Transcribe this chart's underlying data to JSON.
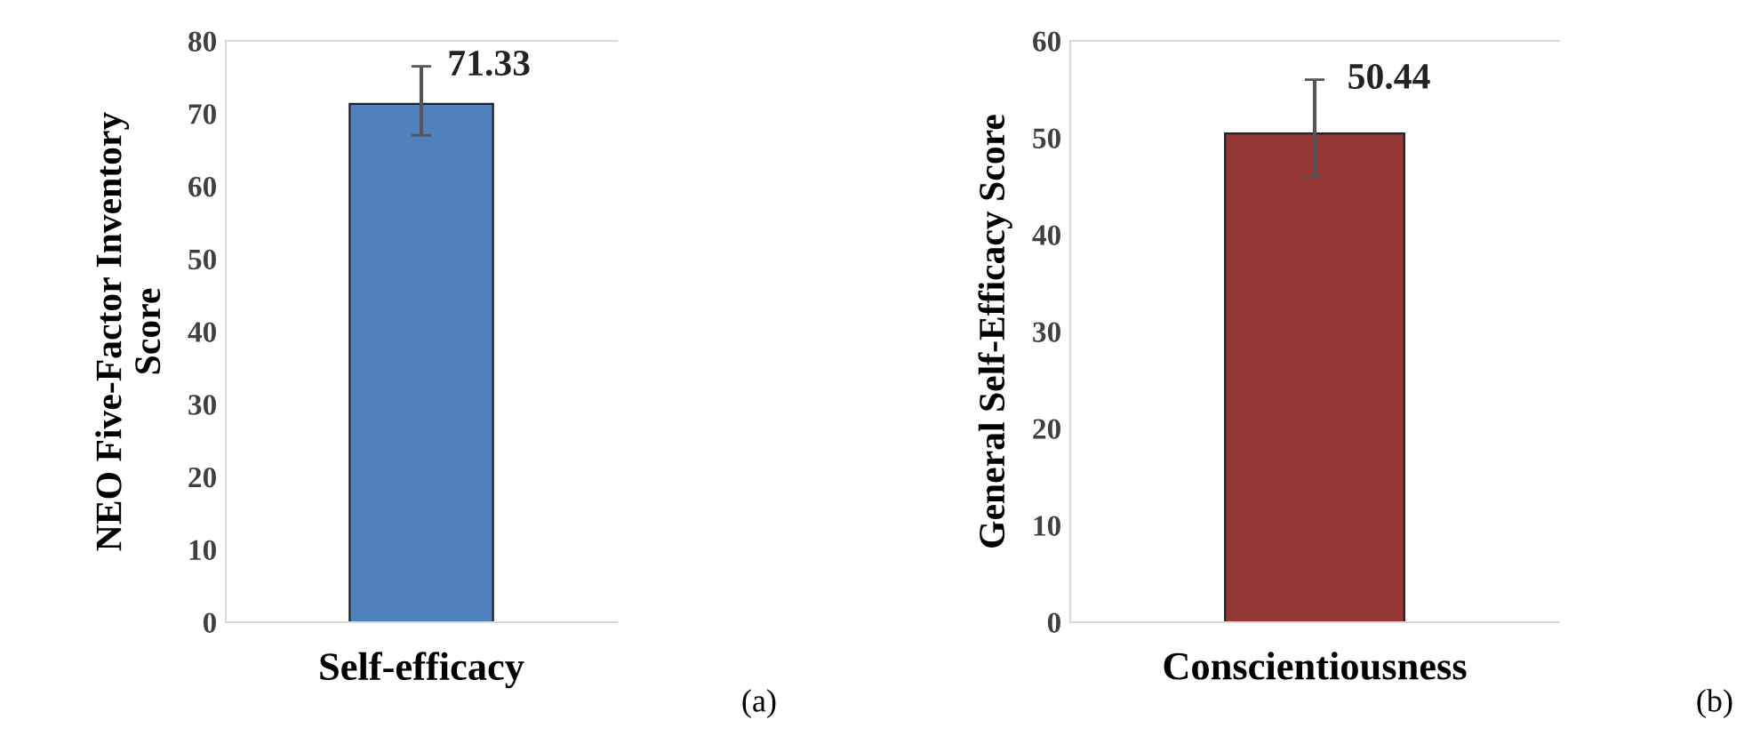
{
  "chart_data": [
    {
      "type": "bar",
      "ylabel": "NEO Five-Factor Inventory\nScore",
      "categories": [
        "Self-efficacy"
      ],
      "values": [
        71.33
      ],
      "errors": [
        [
          67.0,
          76.5
        ]
      ],
      "color": "#4f81bd",
      "ylim": [
        0,
        80
      ],
      "yticks": [
        0,
        10,
        20,
        30,
        40,
        50,
        60,
        70,
        80
      ],
      "data_labels": true,
      "grid": false,
      "annotations": [
        "(a)"
      ]
    },
    {
      "type": "bar",
      "ylabel": "General Self-Efficacy Score",
      "categories": [
        "Conscientiousness"
      ],
      "values": [
        50.44
      ],
      "errors": [
        [
          46.0,
          56.0
        ]
      ],
      "color": "#953735",
      "ylim": [
        0,
        60
      ],
      "yticks": [
        0,
        10,
        20,
        30,
        40,
        50,
        60
      ],
      "data_labels": true,
      "grid": false,
      "annotations": [
        "(b)"
      ]
    }
  ]
}
